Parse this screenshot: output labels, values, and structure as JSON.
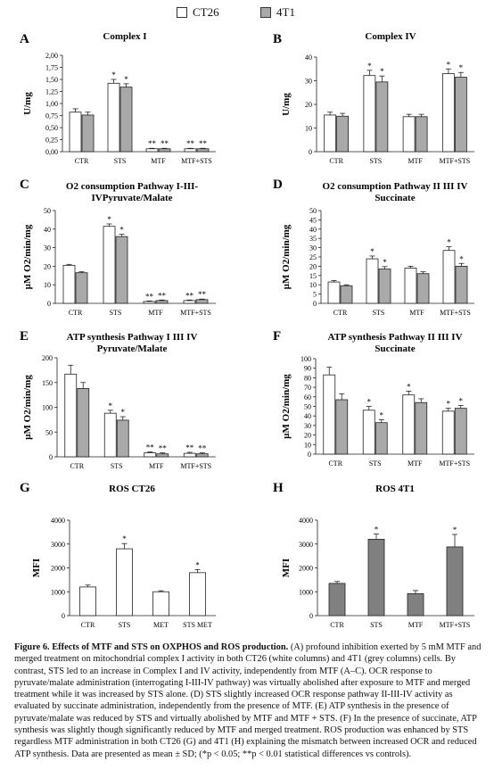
{
  "legend": {
    "items": [
      {
        "label": "CT26",
        "color": "#ffffff"
      },
      {
        "label": "4T1",
        "color": "#a9a9a9"
      }
    ]
  },
  "chart_data": [
    {
      "type": "bar",
      "letter": "A",
      "title": [
        "Complex I"
      ],
      "ylabel": "U/mg",
      "ylim": [
        0,
        2.0
      ],
      "yticks": [
        "0,00",
        "0,25",
        "0,50",
        "0,75",
        "1,00",
        "1,25",
        "1,50",
        "1,75",
        "2,00"
      ],
      "categories": [
        "CTR",
        "STS",
        "MTF",
        "MTF+STS"
      ],
      "series": [
        {
          "name": "CT26",
          "color": "#ffffff",
          "values": [
            0.82,
            1.42,
            0.06,
            0.06
          ],
          "errors": [
            0.07,
            0.08,
            0.01,
            0.01
          ],
          "sig": [
            "",
            "*",
            "**",
            "**"
          ]
        },
        {
          "name": "4T1",
          "color": "#a9a9a9",
          "values": [
            0.76,
            1.34,
            0.06,
            0.06
          ],
          "errors": [
            0.06,
            0.07,
            0.01,
            0.01
          ],
          "sig": [
            "",
            "*",
            "**",
            "**"
          ]
        }
      ]
    },
    {
      "type": "bar",
      "letter": "B",
      "title": [
        "Complex IV"
      ],
      "ylabel": "U/mg",
      "ylim": [
        0,
        40
      ],
      "yticks": [
        "0",
        "10",
        "20",
        "30",
        "40"
      ],
      "categories": [
        "CTR",
        "STS",
        "MTF",
        "MTF+STS"
      ],
      "series": [
        {
          "name": "CT26",
          "color": "#ffffff",
          "values": [
            15.5,
            32.2,
            14.8,
            33.0
          ],
          "errors": [
            1.2,
            2.2,
            1.0,
            2.0
          ],
          "sig": [
            "",
            "*",
            "",
            "*"
          ]
        },
        {
          "name": "4T1",
          "color": "#a9a9a9",
          "values": [
            15.0,
            29.5,
            14.8,
            31.5
          ],
          "errors": [
            1.2,
            2.5,
            1.0,
            2.0
          ],
          "sig": [
            "",
            "*",
            "",
            "*"
          ]
        }
      ]
    },
    {
      "type": "bar",
      "letter": "C",
      "title": [
        "O2 consumption Pathway I-III-",
        "IVPyruvate/Malate"
      ],
      "ylabel": "µM O2/min/mg",
      "ylim": [
        0,
        50
      ],
      "yticks": [
        "0",
        "10",
        "20",
        "30",
        "40",
        "50"
      ],
      "categories": [
        "CTR",
        "STS",
        "MTF",
        "MTF+STS"
      ],
      "series": [
        {
          "name": "CT26",
          "color": "#ffffff",
          "values": [
            20.5,
            41.5,
            1.0,
            1.5
          ],
          "errors": [
            0.5,
            1.3,
            0.3,
            0.3
          ],
          "sig": [
            "",
            "*",
            "**",
            "**"
          ]
        },
        {
          "name": "4T1",
          "color": "#a9a9a9",
          "values": [
            16.5,
            36.0,
            1.5,
            2.0
          ],
          "errors": [
            0.5,
            1.2,
            0.3,
            0.3
          ],
          "sig": [
            "",
            "*",
            "**",
            "**"
          ]
        }
      ]
    },
    {
      "type": "bar",
      "letter": "D",
      "title": [
        "O2 consumption Pathway II III IV",
        "Succinate"
      ],
      "ylabel": "µM O2/min/mg",
      "ylim": [
        0,
        50
      ],
      "yticks": [
        "0",
        "5",
        "10",
        "15",
        "20",
        "25",
        "30",
        "35",
        "40",
        "45",
        "50"
      ],
      "categories": [
        "CTR",
        "STS",
        "MTF",
        "MTF+STS"
      ],
      "series": [
        {
          "name": "CT26",
          "color": "#ffffff",
          "values": [
            11.5,
            24.0,
            19.0,
            28.5
          ],
          "errors": [
            0.8,
            1.5,
            1.0,
            2.0
          ],
          "sig": [
            "",
            "*",
            "",
            "*"
          ]
        },
        {
          "name": "4T1",
          "color": "#a9a9a9",
          "values": [
            9.5,
            18.5,
            16.0,
            20.0
          ],
          "errors": [
            0.5,
            1.3,
            1.0,
            1.5
          ],
          "sig": [
            "",
            "*",
            "",
            "*"
          ]
        }
      ]
    },
    {
      "type": "bar",
      "letter": "E",
      "title": [
        "ATP synthesis Pathway I III IV",
        "Pyruvate/Malate"
      ],
      "ylabel": "µM O2/min/mg",
      "ylim": [
        0,
        200
      ],
      "yticks": [
        "0",
        "50",
        "100",
        "150",
        "200"
      ],
      "categories": [
        "CTR",
        "STS",
        "MTF",
        "MTF+STS"
      ],
      "series": [
        {
          "name": "CT26",
          "color": "#ffffff",
          "values": [
            167,
            88,
            8,
            7
          ],
          "errors": [
            18,
            6,
            2,
            2
          ],
          "sig": [
            "",
            "*",
            "**",
            "**"
          ]
        },
        {
          "name": "4T1",
          "color": "#a9a9a9",
          "values": [
            138,
            74,
            6,
            6
          ],
          "errors": [
            12,
            7,
            2,
            2
          ],
          "sig": [
            "",
            "*",
            "**",
            "**"
          ]
        }
      ]
    },
    {
      "type": "bar",
      "letter": "F",
      "title": [
        "ATP synthesis Pathway II III IV",
        "Succinate"
      ],
      "ylabel": "µM O2/min/mg",
      "ylim": [
        0,
        100
      ],
      "yticks": [
        "0",
        "10",
        "20",
        "30",
        "40",
        "50",
        "60",
        "70",
        "80",
        "90",
        "100"
      ],
      "categories": [
        "CTR",
        "STS",
        "MTF",
        "MTF+STS"
      ],
      "series": [
        {
          "name": "CT26",
          "color": "#ffffff",
          "values": [
            83,
            46,
            62,
            45
          ],
          "errors": [
            8,
            4,
            4,
            3
          ],
          "sig": [
            "",
            "*",
            "*",
            "*"
          ]
        },
        {
          "name": "4T1",
          "color": "#a9a9a9",
          "values": [
            57,
            33,
            54,
            48
          ],
          "errors": [
            6,
            3,
            4,
            3
          ],
          "sig": [
            "",
            "*",
            "",
            "*"
          ]
        }
      ]
    },
    {
      "type": "bar",
      "letter": "G",
      "title": [
        "ROS CT26"
      ],
      "ylabel": "MFI",
      "ylim": [
        0,
        4000
      ],
      "yticks": [
        "0",
        "1000",
        "2000",
        "3000",
        "4000"
      ],
      "categories": [
        "CTR",
        "STS",
        "MET",
        "STS MET"
      ],
      "series": [
        {
          "name": "CT26",
          "color": "#ffffff",
          "values": [
            1200,
            2800,
            1000,
            1800
          ],
          "errors": [
            80,
            220,
            40,
            130
          ],
          "sig": [
            "",
            "*",
            "",
            "*"
          ]
        }
      ]
    },
    {
      "type": "bar",
      "letter": "H",
      "title": [
        "ROS 4T1"
      ],
      "ylabel": "MFI",
      "ylim": [
        0,
        4000
      ],
      "yticks": [
        "0",
        "1000",
        "2000",
        "3000",
        "4000"
      ],
      "categories": [
        "CTR",
        "STS",
        "MTF",
        "MTF+STS"
      ],
      "series": [
        {
          "name": "4T1",
          "color": "#808080",
          "values": [
            1350,
            3200,
            920,
            2880
          ],
          "errors": [
            80,
            220,
            130,
            520
          ],
          "sig": [
            "",
            "*",
            "",
            "*"
          ]
        }
      ]
    }
  ],
  "caption": {
    "lead": "Figure 6.  Effects of MTF and STS on OXPHOS and ROS production.",
    "body": " (A) profound inhibition exerted by 5 mM MTF and merged treatment on mitochondrial complex I activity in both CT26 (white columns) and 4T1 (grey columns) cells. By contrast, STS led to an increase in Complex I and IV activity, independently from MTF (A–C). OCR response to pyruvate/malate administration (interrogating I-III-IV pathway) was virtually abolished after exposure to MTF and merged treatment while it was increased by STS alone. (D) STS slightly increased OCR response pathway II-III-IV activity as evaluated by succinate administration, independently from the presence of MTF. (E) ATP synthesis in the presence of pyruvate/malate was reduced by STS and virtually abolished by MTF and MTF + STS. (F) In the presence of succinate, ATP synthesis was slightly though significantly reduced by MTF and merged treatment. ROS production was enhanced by STS regardless MTF administration in both CT26 (G) and 4T1 (H) explaining the mismatch between increased OCR and reduced ATP synthesis. Data are presented as mean ± SD; (*p < 0.05; **p < 0.01 statistical differences vs controls)."
  }
}
